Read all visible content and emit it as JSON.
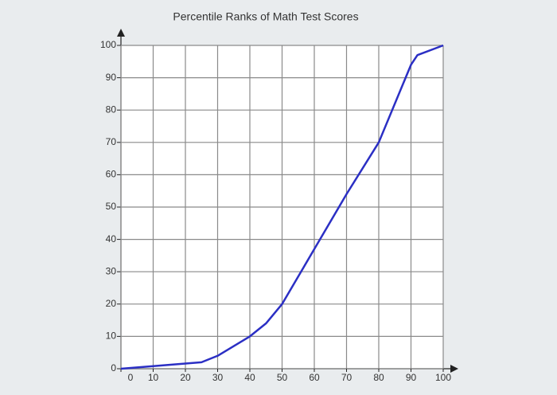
{
  "chart_data": {
    "type": "line",
    "title": "Percentile Ranks of Math Test Scores",
    "x": [
      0,
      25,
      30,
      40,
      45,
      50,
      60,
      70,
      80,
      90,
      92,
      100
    ],
    "values": [
      0,
      2,
      4,
      10,
      14,
      20,
      37,
      54,
      70,
      94,
      97,
      100
    ],
    "color": "#2b2fc4",
    "xlim": [
      0,
      100
    ],
    "xticks": [
      0,
      10,
      20,
      30,
      40,
      50,
      60,
      70,
      80,
      90,
      100
    ],
    "ylim": [
      0,
      100
    ],
    "yticks": [
      0,
      10,
      20,
      30,
      40,
      50,
      60,
      70,
      80,
      90,
      100
    ],
    "grid": true
  }
}
